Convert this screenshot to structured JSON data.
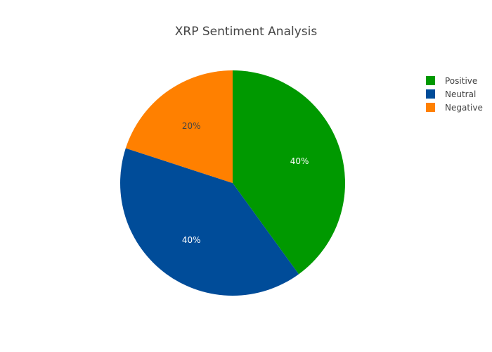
{
  "chart_data": {
    "type": "pie",
    "title": "XRP Sentiment Analysis",
    "labels": [
      "Positive",
      "Neutral",
      "Negative"
    ],
    "values": [
      40,
      40,
      20
    ],
    "display_labels": [
      "40%",
      "40%",
      "20%"
    ],
    "colors": [
      "#009900",
      "#004c99",
      "#ff8000"
    ],
    "label_colors": [
      "#ffffff",
      "#ffffff",
      "#444444"
    ],
    "start_angle_deg": 0,
    "direction": "clockwise",
    "legend_position": "top-right"
  }
}
